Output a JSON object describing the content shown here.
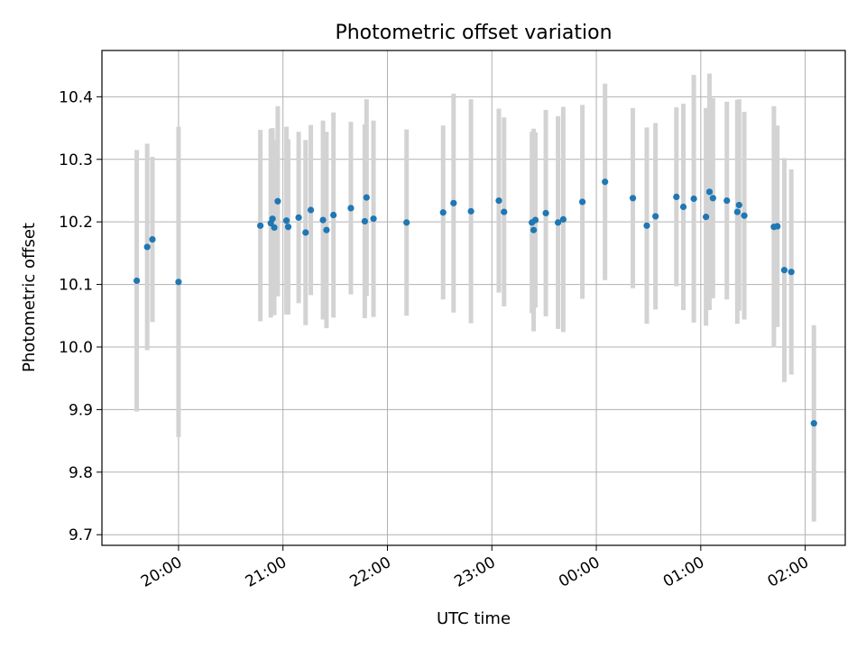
{
  "chart_data": {
    "type": "scatter",
    "title": "Photometric offset variation",
    "xlabel": "UTC time",
    "ylabel": "Photometric offset",
    "x_axis": "time",
    "x_range": [
      "19:16",
      "02:23"
    ],
    "ylim": [
      9.683,
      10.474
    ],
    "x_ticks": [
      "20:00",
      "21:00",
      "22:00",
      "23:00",
      "00:00",
      "01:00",
      "02:00"
    ],
    "y_ticks": [
      9.7,
      9.8,
      9.9,
      10.0,
      10.1,
      10.2,
      10.3,
      10.4
    ],
    "y_tick_labels": [
      "9.7",
      "9.8",
      "9.9",
      "10.0",
      "10.1",
      "10.2",
      "10.3",
      "10.4"
    ],
    "grid": true,
    "legend": "none",
    "colors": {
      "points": "#1f77b4",
      "error_bars": "#d3d3d3",
      "grid": "#b0b0b0"
    },
    "series": [
      {
        "x": [
          "19:36",
          "19:42",
          "19:45",
          "20:00",
          "20:47",
          "20:53",
          "20:54",
          "20:55",
          "20:57",
          "21:02",
          "21:03",
          "21:09",
          "21:13",
          "21:16",
          "21:23",
          "21:25",
          "21:29",
          "21:39",
          "21:47",
          "21:48",
          "21:52",
          "22:11",
          "22:32",
          "22:38",
          "22:48",
          "23:04",
          "23:07",
          "23:23",
          "23:24",
          "23:25",
          "23:31",
          "23:38",
          "23:41",
          "23:52",
          "00:05",
          "00:21",
          "00:29",
          "00:34",
          "00:46",
          "00:50",
          "00:56",
          "01:03",
          "01:05",
          "01:07",
          "01:15",
          "01:21",
          "01:22",
          "01:25",
          "01:42",
          "01:44",
          "01:48",
          "01:52",
          "02:05"
        ],
        "y": [
          10.106,
          10.16,
          10.172,
          10.104,
          10.194,
          10.198,
          10.205,
          10.191,
          10.233,
          10.202,
          10.192,
          10.207,
          10.183,
          10.219,
          10.203,
          10.187,
          10.211,
          10.222,
          10.201,
          10.239,
          10.205,
          10.199,
          10.215,
          10.23,
          10.217,
          10.234,
          10.216,
          10.199,
          10.187,
          10.203,
          10.214,
          10.199,
          10.204,
          10.232,
          10.264,
          10.238,
          10.194,
          10.209,
          10.24,
          10.224,
          10.237,
          10.208,
          10.248,
          10.238,
          10.234,
          10.216,
          10.227,
          10.21,
          10.192,
          10.193,
          10.123,
          10.12,
          9.878
        ],
        "err": [
          0.209,
          0.165,
          0.132,
          0.248,
          0.153,
          0.151,
          0.145,
          0.14,
          0.152,
          0.15,
          0.14,
          0.137,
          0.148,
          0.136,
          0.159,
          0.157,
          0.164,
          0.138,
          0.155,
          0.157,
          0.157,
          0.149,
          0.139,
          0.175,
          0.179,
          0.147,
          0.151,
          0.145,
          0.162,
          0.14,
          0.165,
          0.17,
          0.18,
          0.155,
          0.157,
          0.144,
          0.157,
          0.149,
          0.143,
          0.165,
          0.198,
          0.174,
          0.189,
          0.16,
          0.158,
          0.179,
          0.169,
          0.166,
          0.193,
          0.161,
          0.179,
          0.164,
          0.157
        ]
      }
    ]
  }
}
